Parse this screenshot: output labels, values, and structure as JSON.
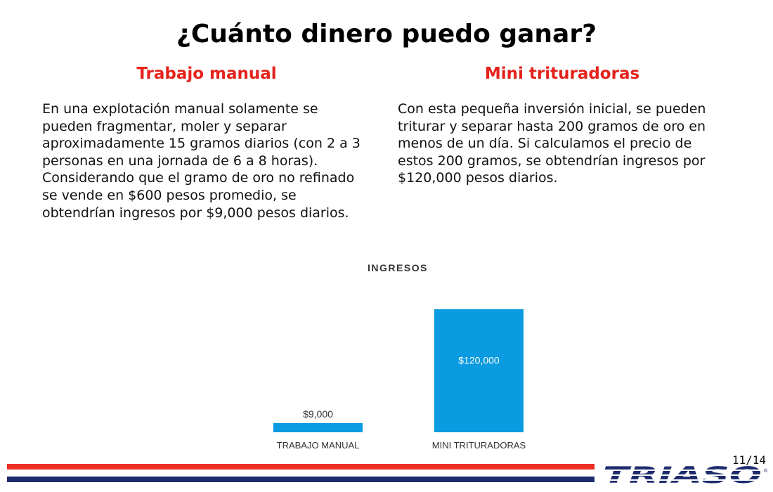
{
  "title": "¿Cuánto dinero puedo ganar?",
  "left": {
    "heading": "Trabajo manual",
    "body": "En una explotación manual solamente se pueden fragmentar, moler y separar aproximadamente 15 gramos diarios (con 2 a 3 personas en una jornada de 6 a 8 horas). Considerando que el gramo de oro no refinado se vende en $600 pesos promedio, se obtendrían ingresos por $9,000 pesos diarios."
  },
  "right": {
    "heading": "Mini trituradoras",
    "body": "Con esta pequeña inversión inicial, se pueden triturar y separar hasta 200 gramos de oro en menos de un día. Si calculamos el precio de estos 200 gramos, se obtendrían ingresos por $120,000 pesos diarios."
  },
  "chart_data": {
    "type": "bar",
    "title": "INGRESOS",
    "categories": [
      "TRABAJO MANUAL",
      "MINI TRITURADORAS"
    ],
    "values": [
      9000,
      120000
    ],
    "value_labels": [
      "$9,000",
      "$120,000"
    ],
    "ylim": [
      0,
      120000
    ],
    "bar_color": "#0a9be0",
    "grid": false,
    "legend": "none"
  },
  "footer": {
    "page": "11/14",
    "logo_text": "TRIASO",
    "stripe_red": "#ee2d24",
    "stripe_navy": "#1e2c6e"
  }
}
